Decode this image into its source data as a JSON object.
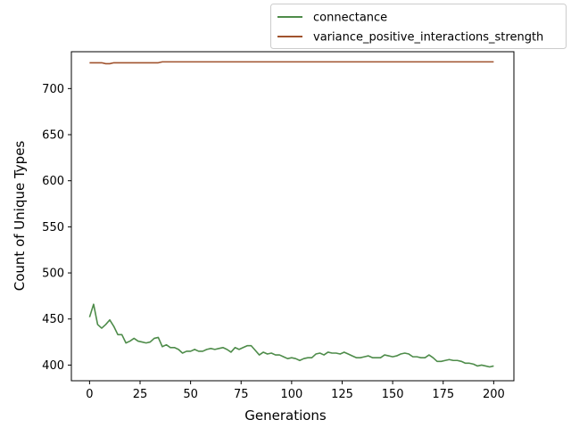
{
  "chart_data": {
    "type": "line",
    "title": "",
    "xlabel": "Generations",
    "ylabel": "Count of Unique Types",
    "xlim": [
      -9,
      210
    ],
    "ylim": [
      383,
      740
    ],
    "xticks": [
      0,
      25,
      50,
      75,
      100,
      125,
      150,
      175,
      200
    ],
    "yticks": [
      400,
      450,
      500,
      550,
      600,
      650,
      700
    ],
    "legend_position": "top-right (outside, above axes)",
    "grid": false,
    "series": [
      {
        "name": "connectance",
        "color": "#4e8c4a",
        "x": [
          0,
          2,
          4,
          6,
          8,
          10,
          12,
          14,
          16,
          18,
          20,
          22,
          24,
          26,
          28,
          30,
          32,
          34,
          36,
          38,
          40,
          42,
          44,
          46,
          48,
          50,
          52,
          54,
          56,
          58,
          60,
          62,
          64,
          66,
          68,
          70,
          72,
          74,
          76,
          78,
          80,
          82,
          84,
          86,
          88,
          90,
          92,
          94,
          96,
          98,
          100,
          102,
          104,
          106,
          108,
          110,
          112,
          114,
          116,
          118,
          120,
          122,
          124,
          126,
          128,
          130,
          132,
          134,
          136,
          138,
          140,
          142,
          144,
          146,
          148,
          150,
          152,
          154,
          156,
          158,
          160,
          162,
          164,
          166,
          168,
          170,
          172,
          174,
          176,
          178,
          180,
          182,
          184,
          186,
          188,
          190,
          192,
          194,
          196,
          198,
          200
        ],
        "values": [
          452,
          466,
          444,
          440,
          444,
          449,
          442,
          433,
          433,
          424,
          426,
          429,
          426,
          425,
          424,
          425,
          429,
          430,
          420,
          422,
          419,
          419,
          417,
          413,
          415,
          415,
          417,
          415,
          415,
          417,
          418,
          417,
          418,
          419,
          417,
          414,
          419,
          417,
          419,
          421,
          421,
          416,
          411,
          414,
          412,
          413,
          411,
          411,
          409,
          407,
          408,
          407,
          405,
          407,
          408,
          408,
          412,
          413,
          411,
          414,
          413,
          413,
          412,
          414,
          412,
          410,
          408,
          408,
          409,
          410,
          408,
          408,
          408,
          411,
          410,
          409,
          410,
          412,
          413,
          412,
          409,
          409,
          408,
          408,
          411,
          408,
          404,
          404,
          405,
          406,
          405,
          405,
          404,
          402,
          402,
          401,
          399,
          400,
          399,
          398,
          399
        ]
      },
      {
        "name": "variance_positive_interactions_strength",
        "color": "#a0522d",
        "x": [
          0,
          4,
          6,
          8,
          10,
          12,
          34,
          36,
          200
        ],
        "values": [
          728,
          728,
          728,
          727,
          727,
          728,
          728,
          729,
          729
        ]
      }
    ]
  }
}
